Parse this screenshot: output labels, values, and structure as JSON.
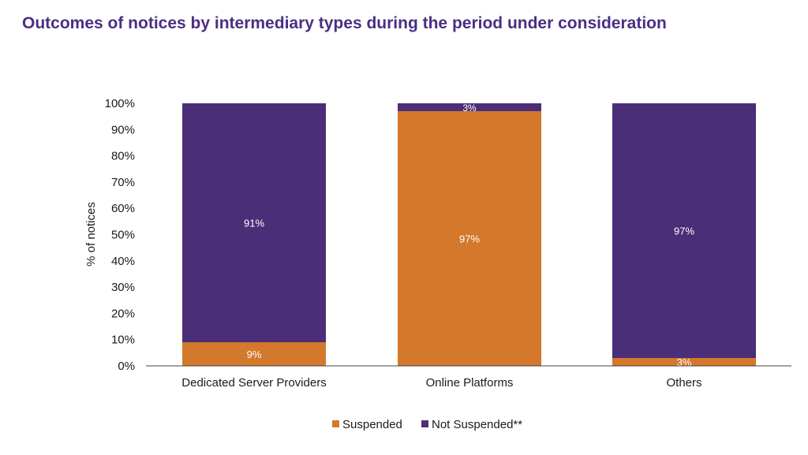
{
  "title": "Outcomes of notices by intermediary types during the period under consideration",
  "chart_data": {
    "type": "bar",
    "stacked": true,
    "ylabel": "% of notices",
    "xlabel": "",
    "ylim": [
      0,
      100
    ],
    "yticks": [
      "0%",
      "10%",
      "20%",
      "30%",
      "40%",
      "50%",
      "60%",
      "70%",
      "80%",
      "90%",
      "100%"
    ],
    "categories": [
      "Dedicated Server Providers",
      "Online Platforms",
      "Others"
    ],
    "series": [
      {
        "name": "Suspended",
        "color": "#d4782b",
        "values": [
          9,
          97,
          3
        ],
        "labels": [
          "9%",
          "97%",
          "3%"
        ]
      },
      {
        "name": "Not Suspended**",
        "color": "#4b2e78",
        "values": [
          91,
          3,
          97
        ],
        "labels": [
          "91%",
          "3%",
          "97%"
        ]
      }
    ],
    "legend": "bottom",
    "grid": false
  }
}
